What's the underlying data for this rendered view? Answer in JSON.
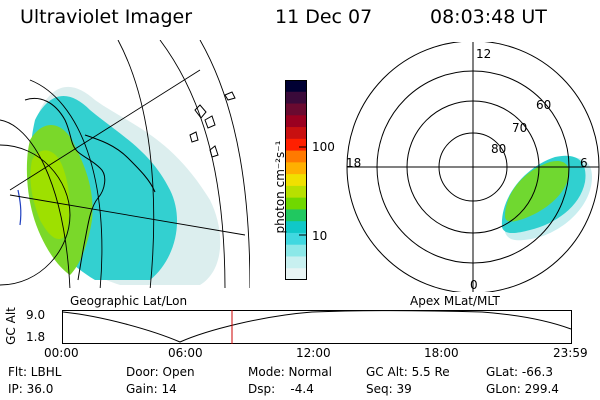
{
  "header": {
    "instrument": "Ultraviolet Imager",
    "date": "11 Dec 07",
    "time": "08:03:48 UT"
  },
  "panels": {
    "left_label": "Geographic Lat/Lon",
    "right_label": "Apex MLat/MLT"
  },
  "colorbar": {
    "unit_label": "photon cm⁻²s⁻¹",
    "ticks": [
      "100",
      "10"
    ],
    "colors": [
      "#000033",
      "#3a0a3a",
      "#6a0a30",
      "#9a0020",
      "#c81010",
      "#ff2000",
      "#ff7a00",
      "#ffb000",
      "#f0e000",
      "#b8e000",
      "#70d800",
      "#20c860",
      "#10c8c8",
      "#40d8e0",
      "#8ce8e8",
      "#c8f0f0",
      "#e8f4f4"
    ]
  },
  "polar": {
    "mlt_labels": [
      "12",
      "18",
      "6",
      "0"
    ],
    "mlat_labels": [
      "60",
      "70",
      "80"
    ]
  },
  "timeline": {
    "axis_label": "GC Alt",
    "y_ticks": [
      "9.0",
      "1.8"
    ],
    "x_ticks": [
      "00:00",
      "06:00",
      "12:00",
      "18:00",
      "23:59"
    ],
    "marker_color": "#cc0000"
  },
  "info": {
    "flt": "Flt: LBHL",
    "ip": "IP: 36.0",
    "door": "Door: Open",
    "gain": "Gain: 14",
    "mode": "Mode: Normal",
    "dsp": "Dsp:    -4.4",
    "gc_alt": "GC Alt: 5.5 Re",
    "seq": "Seq: 39",
    "glat": "GLat: -66.3",
    "glon": "GLon: 299.4"
  }
}
